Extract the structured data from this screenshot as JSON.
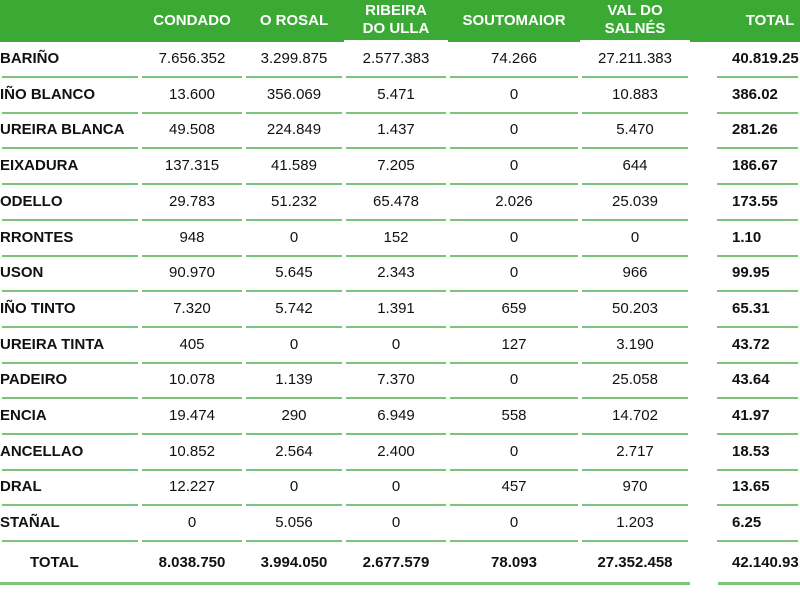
{
  "headers": [
    "CONDADO",
    "O ROSAL",
    "RIBEIRA\nDO ULLA",
    "SOUTOMAIOR",
    "VAL DO\nSALNÉS",
    "TOTAL"
  ],
  "rows": [
    {
      "name": "BARIÑO",
      "vals": [
        "7.656.352",
        "3.299.875",
        "2.577.383",
        "74.266",
        "27.211.383"
      ],
      "total": "40.819.25"
    },
    {
      "name": "IÑO BLANCO",
      "vals": [
        "13.600",
        "356.069",
        "5.471",
        "0",
        "10.883"
      ],
      "total": "386.02"
    },
    {
      "name": "UREIRA BLANCA",
      "vals": [
        "49.508",
        "224.849",
        "1.437",
        "0",
        "5.470"
      ],
      "total": "281.26"
    },
    {
      "name": "EIXADURA",
      "vals": [
        "137.315",
        "41.589",
        "7.205",
        "0",
        "644"
      ],
      "total": "186.67"
    },
    {
      "name": "ODELLO",
      "vals": [
        "29.783",
        "51.232",
        "65.478",
        "2.026",
        "25.039"
      ],
      "total": "173.55"
    },
    {
      "name": "RRONTES",
      "vals": [
        "948",
        "0",
        "152",
        "0",
        "0"
      ],
      "total": "1.10"
    },
    {
      "name": "USON",
      "vals": [
        "90.970",
        "5.645",
        "2.343",
        "0",
        "966"
      ],
      "total": "99.95"
    },
    {
      "name": "IÑO TINTO",
      "vals": [
        "7.320",
        "5.742",
        "1.391",
        "659",
        "50.203"
      ],
      "total": "65.31"
    },
    {
      "name": "UREIRA TINTA",
      "vals": [
        "405",
        "0",
        "0",
        "127",
        "3.190"
      ],
      "total": "43.72"
    },
    {
      "name": "PADEIRO",
      "vals": [
        "10.078",
        "1.139",
        "7.370",
        "0",
        "25.058"
      ],
      "total": "43.64"
    },
    {
      "name": "ENCIA",
      "vals": [
        "19.474",
        "290",
        "6.949",
        "558",
        "14.702"
      ],
      "total": "41.97"
    },
    {
      "name": "ANCELLAO",
      "vals": [
        "10.852",
        "2.564",
        "2.400",
        "0",
        "2.717"
      ],
      "total": "18.53"
    },
    {
      "name": "DRAL",
      "vals": [
        "12.227",
        "0",
        "0",
        "457",
        "970"
      ],
      "total": "13.65"
    },
    {
      "name": "STAÑAL",
      "vals": [
        "0",
        "5.056",
        "0",
        "0",
        "1.203"
      ],
      "total": "6.25"
    }
  ],
  "total_row": {
    "name": "TOTAL",
    "vals": [
      "8.038.750",
      "3.994.050",
      "2.677.579",
      "78.093",
      "27.352.458"
    ],
    "total": "42.140.93"
  },
  "colors": {
    "header_bg": "#3aaa35",
    "line": "#7cc47a"
  }
}
